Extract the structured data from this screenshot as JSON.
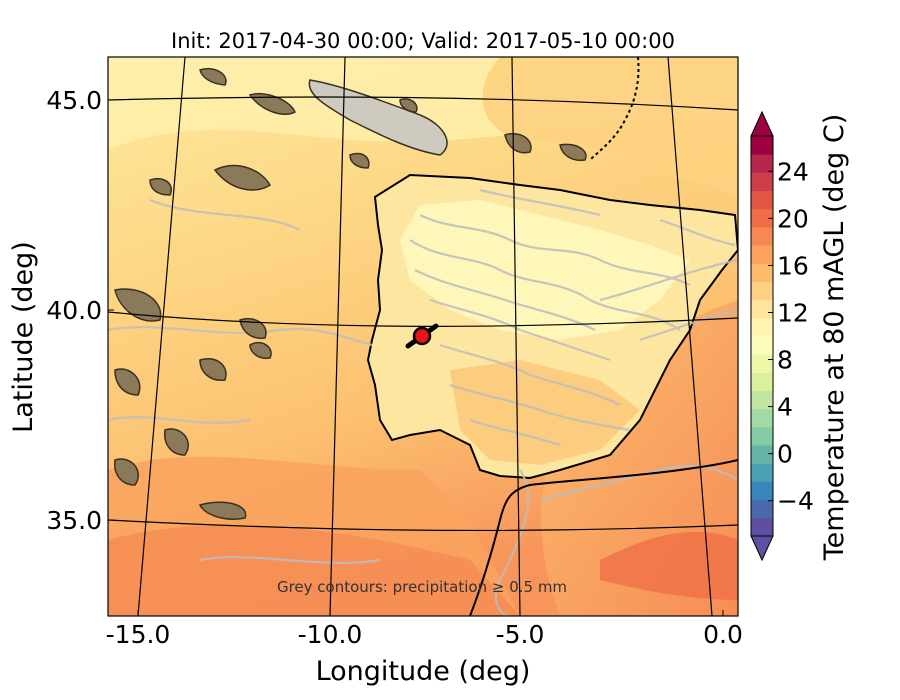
{
  "title": "Init: 2017-04-30 00:00; Valid: 2017-05-10 00:00",
  "xlabel": "Longitude (deg)",
  "ylabel": "Latitude (deg)",
  "colorbar_label": "Temperature at 80 mAGL (deg C)",
  "note": "Grey contours: precipitation ≥ 0.5 mm",
  "colorbar": {
    "ticks": [
      "24",
      "20",
      "16",
      "12",
      "8",
      "4",
      "0",
      "−4"
    ],
    "tick_values": [
      24,
      20,
      16,
      12,
      8,
      4,
      0,
      -4
    ],
    "range": [
      -7,
      27
    ],
    "colors": [
      "#5e4fa2",
      "#4b68ad",
      "#3b84bb",
      "#48a0b2",
      "#64b5a6",
      "#83cba4",
      "#a2d9a4",
      "#c0e5a0",
      "#daf09b",
      "#eef8a6",
      "#fbfdba",
      "#fff4b0",
      "#fee59a",
      "#fdd181",
      "#fdbc6c",
      "#fca25d",
      "#f78851",
      "#ef6e45",
      "#e05642",
      "#cc3e4a",
      "#b7264e",
      "#9e0142"
    ]
  },
  "x_ticks": [
    "-15.0",
    "-10.0",
    "-5.0",
    "0.0"
  ],
  "y_ticks": [
    "45.0",
    "40.0",
    "35.0"
  ],
  "marker": {
    "lon": -7.6,
    "lat": 39.3,
    "color": "#e8141a"
  },
  "extent": {
    "lon": [
      -16,
      0.3
    ],
    "lat": [
      32.7,
      46.1
    ]
  }
}
